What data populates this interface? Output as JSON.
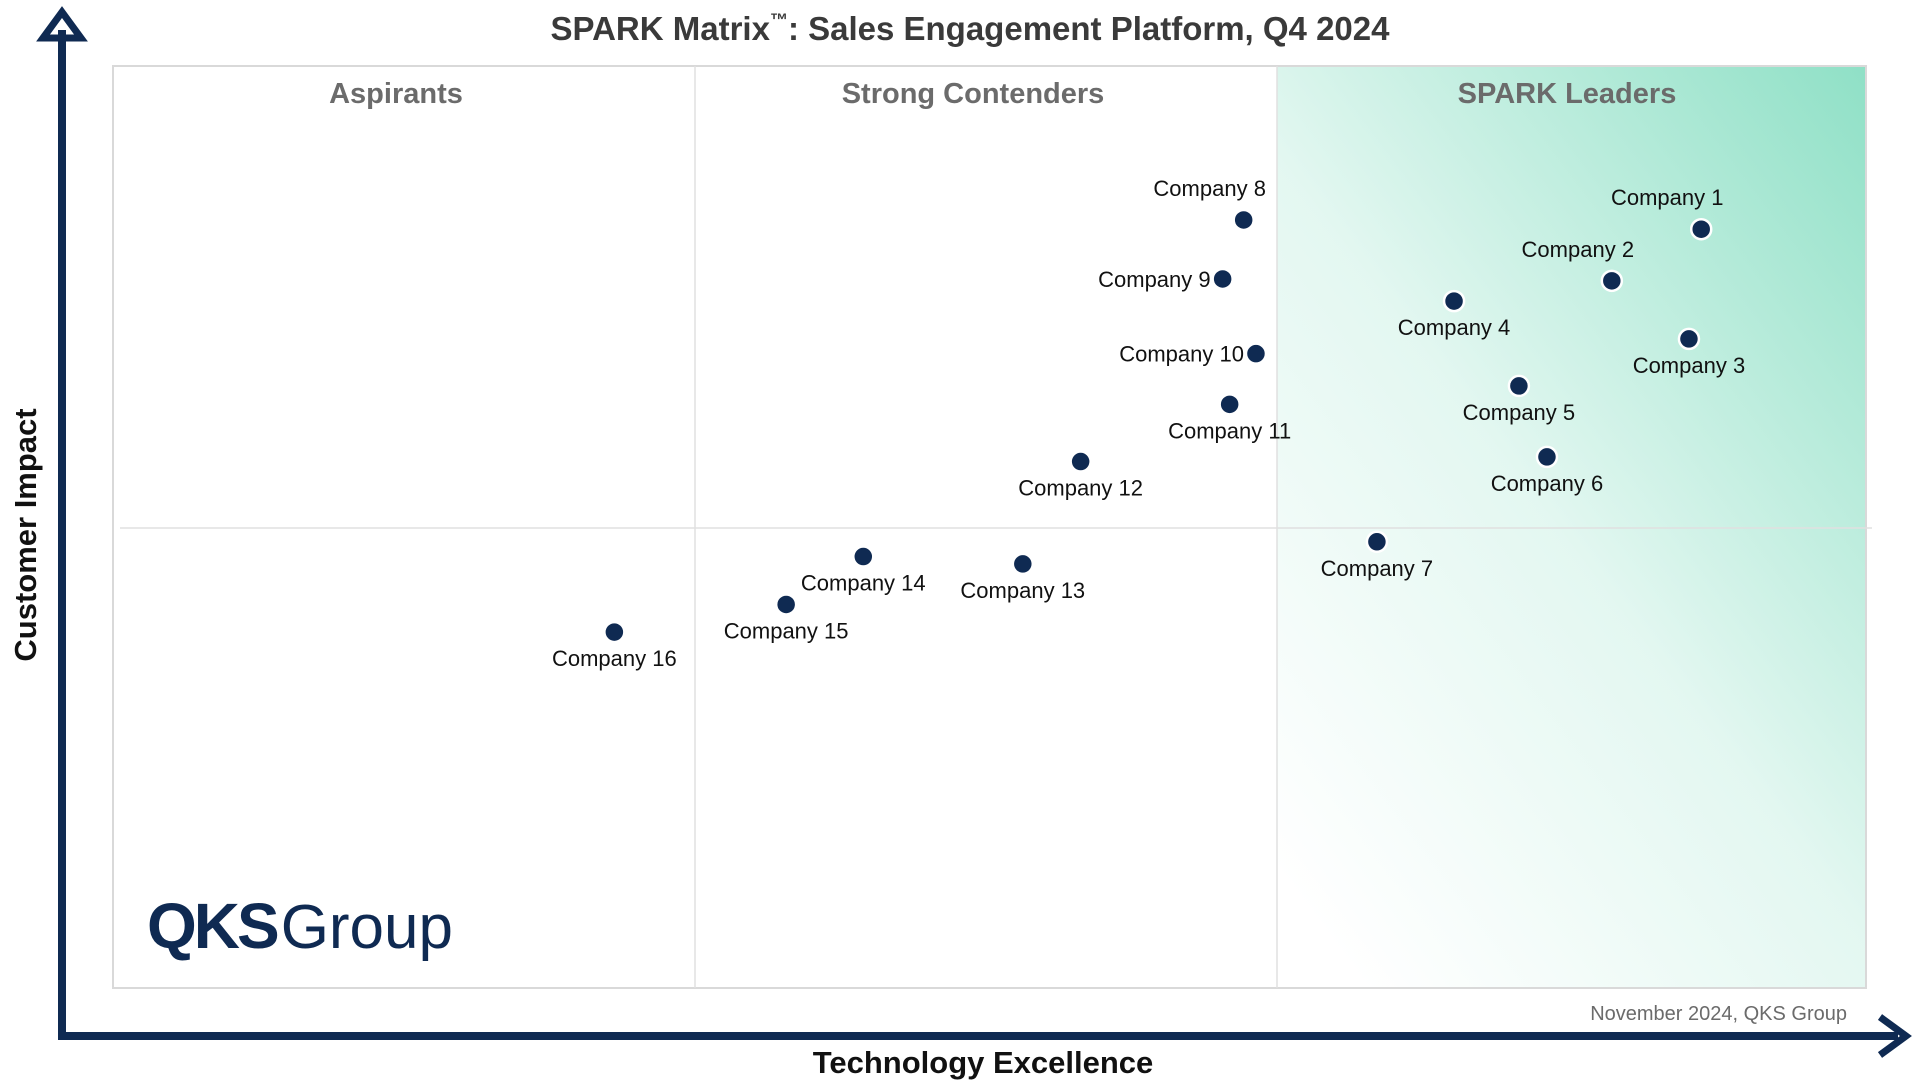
{
  "chart_data": {
    "type": "scatter",
    "title": "SPARK Matrix",
    "title_tm": "™",
    "title_rest": ": Sales Engagement Platform, Q4 2024",
    "xlabel": "Technology Excellence",
    "ylabel": "Customer Impact",
    "columns": [
      "Aspirants",
      "Strong Contenders",
      "SPARK Leaders"
    ],
    "footnote": "November 2024, QKS Group",
    "logo": {
      "bold": "QKS",
      "light": "Group"
    },
    "colors": {
      "point": "#0f2a52",
      "axis": "#0f2a52",
      "title": "#3a3a3a",
      "column_label": "#6b6b6b",
      "leaders_fill": "#8fe0c6"
    },
    "xlim": [
      0,
      100
    ],
    "ylim": [
      0,
      100
    ],
    "points": [
      {
        "name": "Company 1",
        "x": 90.6,
        "y": 82.3,
        "label": "above"
      },
      {
        "name": "Company 2",
        "x": 85.5,
        "y": 76.7,
        "label": "above"
      },
      {
        "name": "Company 3",
        "x": 89.9,
        "y": 70.4,
        "label": "below"
      },
      {
        "name": "Company 4",
        "x": 76.5,
        "y": 74.5,
        "label": "below"
      },
      {
        "name": "Company 5",
        "x": 80.2,
        "y": 65.3,
        "label": "below"
      },
      {
        "name": "Company 6",
        "x": 81.8,
        "y": 57.6,
        "label": "below"
      },
      {
        "name": "Company 7",
        "x": 72.1,
        "y": 48.4,
        "label": "below"
      },
      {
        "name": "Company 8",
        "x": 64.5,
        "y": 83.3,
        "label": "above"
      },
      {
        "name": "Company 9",
        "x": 63.3,
        "y": 76.9,
        "label": "left"
      },
      {
        "name": "Company 10",
        "x": 65.2,
        "y": 68.8,
        "label": "left"
      },
      {
        "name": "Company 11",
        "x": 63.7,
        "y": 63.3,
        "label": "below"
      },
      {
        "name": "Company 12",
        "x": 55.2,
        "y": 57.1,
        "label": "below"
      },
      {
        "name": "Company 13",
        "x": 51.9,
        "y": 46.0,
        "label": "below"
      },
      {
        "name": "Company 14",
        "x": 42.8,
        "y": 46.8,
        "label": "below"
      },
      {
        "name": "Company 15",
        "x": 38.4,
        "y": 41.6,
        "label": "below"
      },
      {
        "name": "Company 16",
        "x": 28.6,
        "y": 38.6,
        "label": "below"
      }
    ]
  }
}
